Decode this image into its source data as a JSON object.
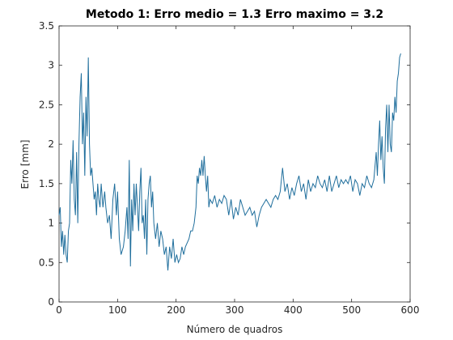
{
  "chart_data": {
    "type": "line",
    "title": "Metodo 1: Erro medio = 1.3 Erro maximo = 3.2",
    "xlabel": "Número de quadros",
    "ylabel": "Erro [mm]",
    "xlim": [
      0,
      600
    ],
    "xticks": [
      0,
      100,
      200,
      300,
      400,
      500,
      600
    ],
    "ylim": [
      0,
      3.5
    ],
    "yticks": [
      0,
      0.5,
      1,
      1.5,
      2,
      2.5,
      3,
      3.5
    ],
    "grid": false,
    "x": [
      0,
      2,
      4,
      6,
      8,
      10,
      12,
      14,
      16,
      18,
      20,
      22,
      24,
      26,
      28,
      30,
      32,
      34,
      36,
      38,
      40,
      42,
      44,
      46,
      48,
      50,
      52,
      54,
      56,
      58,
      60,
      62,
      64,
      66,
      68,
      70,
      72,
      75,
      78,
      80,
      83,
      86,
      89,
      92,
      95,
      98,
      100,
      103,
      106,
      110,
      113,
      116,
      118,
      120,
      122,
      124,
      126,
      128,
      130,
      132,
      134,
      136,
      138,
      140,
      142,
      144,
      146,
      148,
      150,
      152,
      154,
      156,
      158,
      160,
      162,
      165,
      168,
      171,
      174,
      177,
      180,
      183,
      186,
      189,
      192,
      195,
      198,
      201,
      204,
      207,
      210,
      213,
      216,
      219,
      222,
      225,
      228,
      231,
      234,
      236,
      238,
      240,
      242,
      244,
      246,
      248,
      250,
      252,
      254,
      256,
      258,
      262,
      266,
      270,
      274,
      278,
      282,
      286,
      290,
      294,
      298,
      302,
      306,
      310,
      314,
      318,
      322,
      326,
      330,
      334,
      338,
      342,
      346,
      350,
      354,
      358,
      362,
      366,
      370,
      374,
      378,
      382,
      386,
      390,
      394,
      398,
      402,
      406,
      410,
      414,
      418,
      422,
      426,
      430,
      434,
      438,
      442,
      446,
      450,
      454,
      458,
      462,
      466,
      470,
      474,
      478,
      482,
      486,
      490,
      494,
      498,
      502,
      506,
      510,
      514,
      518,
      522,
      526,
      530,
      534,
      538,
      542,
      544,
      546,
      548,
      550,
      552,
      554,
      556,
      558,
      560,
      562,
      564,
      566,
      568,
      570,
      572,
      574,
      576,
      578,
      580,
      582,
      584
    ],
    "series": [
      {
        "name": "Erro",
        "color": "#1f6e9c",
        "values": [
          1.1,
          1.2,
          0.7,
          0.9,
          0.6,
          0.85,
          0.6,
          0.5,
          0.9,
          1.0,
          1.8,
          1.5,
          2.05,
          1.3,
          1.1,
          1.9,
          1.0,
          2.0,
          2.6,
          2.9,
          2.0,
          2.4,
          1.6,
          2.6,
          2.1,
          3.1,
          2.0,
          1.6,
          1.7,
          1.5,
          1.3,
          1.4,
          1.1,
          1.5,
          1.3,
          1.2,
          1.5,
          1.2,
          1.4,
          1.2,
          1.0,
          1.1,
          0.8,
          1.3,
          1.5,
          1.1,
          1.4,
          0.8,
          0.6,
          0.7,
          0.9,
          1.2,
          0.8,
          1.8,
          0.45,
          1.3,
          0.9,
          1.5,
          1.1,
          1.5,
          1.2,
          0.9,
          1.4,
          1.7,
          1.0,
          1.1,
          0.8,
          1.3,
          0.6,
          1.3,
          1.5,
          1.6,
          1.2,
          1.4,
          1.0,
          0.8,
          1.0,
          0.7,
          0.9,
          0.8,
          0.6,
          0.7,
          0.4,
          0.7,
          0.55,
          0.8,
          0.5,
          0.6,
          0.5,
          0.55,
          0.7,
          0.6,
          0.7,
          0.75,
          0.8,
          0.9,
          0.9,
          1.0,
          1.2,
          1.6,
          1.5,
          1.7,
          1.6,
          1.8,
          1.6,
          1.85,
          1.6,
          1.4,
          1.6,
          1.2,
          1.3,
          1.25,
          1.35,
          1.2,
          1.3,
          1.25,
          1.35,
          1.3,
          1.1,
          1.3,
          1.05,
          1.2,
          1.1,
          1.3,
          1.2,
          1.1,
          1.15,
          1.2,
          1.1,
          1.15,
          0.95,
          1.1,
          1.2,
          1.25,
          1.3,
          1.25,
          1.2,
          1.3,
          1.35,
          1.3,
          1.4,
          1.7,
          1.4,
          1.5,
          1.3,
          1.45,
          1.35,
          1.5,
          1.6,
          1.4,
          1.5,
          1.3,
          1.55,
          1.4,
          1.5,
          1.45,
          1.6,
          1.5,
          1.45,
          1.55,
          1.4,
          1.6,
          1.4,
          1.5,
          1.6,
          1.45,
          1.55,
          1.5,
          1.55,
          1.5,
          1.6,
          1.4,
          1.55,
          1.5,
          1.35,
          1.5,
          1.45,
          1.6,
          1.5,
          1.45,
          1.55,
          1.9,
          1.6,
          2.0,
          2.3,
          1.8,
          2.1,
          1.7,
          1.5,
          2.2,
          2.5,
          1.9,
          2.5,
          2.0,
          1.9,
          2.4,
          2.3,
          2.6,
          2.4,
          2.8,
          2.9,
          3.1,
          3.15
        ]
      }
    ]
  }
}
